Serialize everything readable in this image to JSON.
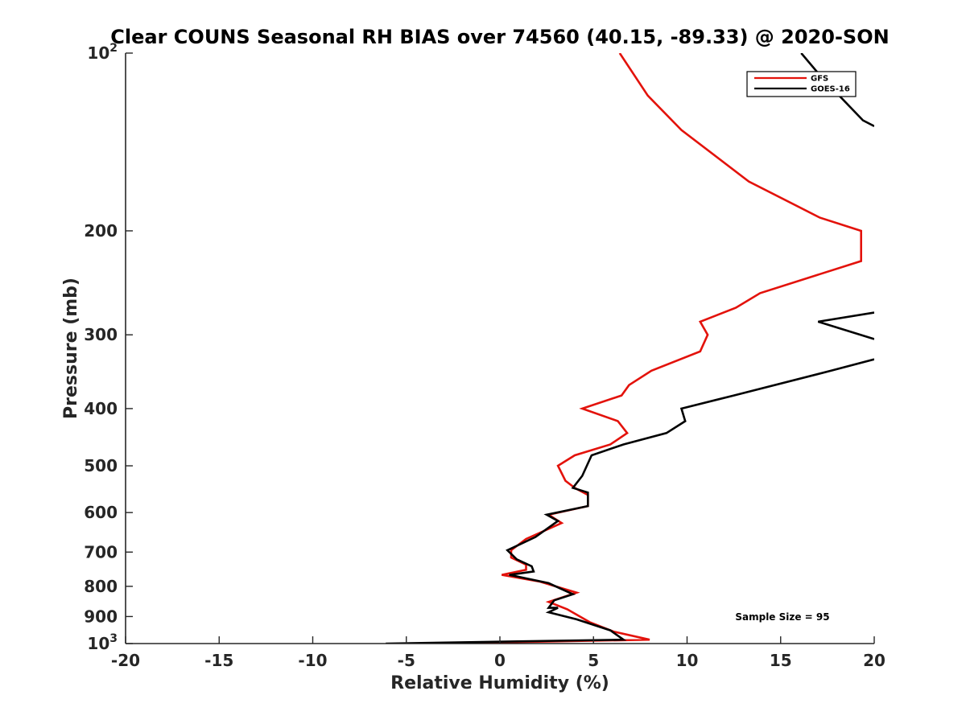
{
  "chart_data": {
    "type": "line",
    "title": "Clear COUNS Seasonal RH BIAS over 74560 (40.15, -89.33) @ 2020-SON",
    "xlabel": "Relative Humidity (%)",
    "ylabel": "Pressure (mb)",
    "xlim": [
      -20,
      20
    ],
    "ylim": [
      100,
      1000
    ],
    "y_scale": "log",
    "y_reversed": true,
    "grid": false,
    "legend_position": "top-right",
    "x_ticks": [
      -20,
      -15,
      -10,
      -5,
      0,
      5,
      10,
      15,
      20
    ],
    "x_tick_labels": [
      "-20",
      "-15",
      "-10",
      "-5",
      "0",
      "5",
      "10",
      "15",
      "20"
    ],
    "y_ticks": [
      100,
      200,
      300,
      400,
      500,
      600,
      700,
      800,
      900,
      1000
    ],
    "y_tick_labels": [
      {
        "base": "10",
        "exp": "2"
      },
      {
        "base": "200",
        "exp": ""
      },
      {
        "base": "300",
        "exp": ""
      },
      {
        "base": "400",
        "exp": ""
      },
      {
        "base": "500",
        "exp": ""
      },
      {
        "base": "600",
        "exp": ""
      },
      {
        "base": "700",
        "exp": ""
      },
      {
        "base": "800",
        "exp": ""
      },
      {
        "base": "900",
        "exp": ""
      },
      {
        "base": "10",
        "exp": "3"
      }
    ],
    "annotation": "Sample Size = 95",
    "series": [
      {
        "name": "GFS",
        "color": "#e3120b",
        "points": [
          [
            6.4,
            100
          ],
          [
            7.9,
            118
          ],
          [
            9.7,
            135
          ],
          [
            13.3,
            165
          ],
          [
            17.1,
            190
          ],
          [
            19.3,
            200
          ],
          [
            19.3,
            225
          ],
          [
            13.9,
            255
          ],
          [
            12.6,
            270
          ],
          [
            10.7,
            285
          ],
          [
            11.1,
            300
          ],
          [
            10.7,
            320
          ],
          [
            8.1,
            345
          ],
          [
            6.9,
            365
          ],
          [
            6.5,
            380
          ],
          [
            4.4,
            400
          ],
          [
            6.3,
            420
          ],
          [
            6.8,
            440
          ],
          [
            5.9,
            460
          ],
          [
            4.0,
            480
          ],
          [
            3.1,
            500
          ],
          [
            3.5,
            530
          ],
          [
            4.0,
            545
          ],
          [
            4.7,
            560
          ],
          [
            4.7,
            585
          ],
          [
            2.6,
            605
          ],
          [
            3.3,
            625
          ],
          [
            1.4,
            665
          ],
          [
            0.6,
            695
          ],
          [
            0.6,
            715
          ],
          [
            1.4,
            735
          ],
          [
            1.4,
            750
          ],
          [
            0.1,
            765
          ],
          [
            2.1,
            785
          ],
          [
            4.1,
            820
          ],
          [
            2.6,
            850
          ],
          [
            3.6,
            875
          ],
          [
            4.8,
            920
          ],
          [
            6.1,
            955
          ],
          [
            8.0,
            985
          ],
          [
            -3.3,
            1000
          ]
        ]
      },
      {
        "name": "GOES-16",
        "color": "#000000",
        "points": [
          [
            16.1,
            100
          ],
          [
            17.2,
            110
          ],
          [
            19.4,
            130
          ],
          [
            20.0,
            133
          ],
          null,
          [
            20.0,
            275
          ],
          [
            17.0,
            285
          ],
          [
            20.0,
            305
          ],
          null,
          [
            20.0,
            330
          ],
          [
            17.7,
            345
          ],
          [
            12.5,
            380
          ],
          [
            9.7,
            400
          ],
          [
            9.9,
            420
          ],
          [
            8.9,
            440
          ],
          [
            6.6,
            460
          ],
          [
            4.9,
            480
          ],
          [
            4.4,
            520
          ],
          [
            3.9,
            545
          ],
          [
            4.7,
            555
          ],
          [
            4.7,
            585
          ],
          [
            2.5,
            605
          ],
          [
            3.1,
            620
          ],
          [
            1.9,
            660
          ],
          [
            0.4,
            695
          ],
          [
            0.9,
            720
          ],
          [
            1.7,
            740
          ],
          [
            1.8,
            755
          ],
          [
            0.5,
            765
          ],
          [
            2.6,
            790
          ],
          [
            3.9,
            825
          ],
          [
            2.9,
            845
          ],
          [
            2.6,
            870
          ],
          [
            3.1,
            870
          ],
          [
            2.6,
            885
          ],
          [
            4.1,
            910
          ],
          [
            5.9,
            950
          ],
          [
            6.6,
            985
          ],
          [
            -6.1,
            1000
          ]
        ]
      }
    ]
  }
}
